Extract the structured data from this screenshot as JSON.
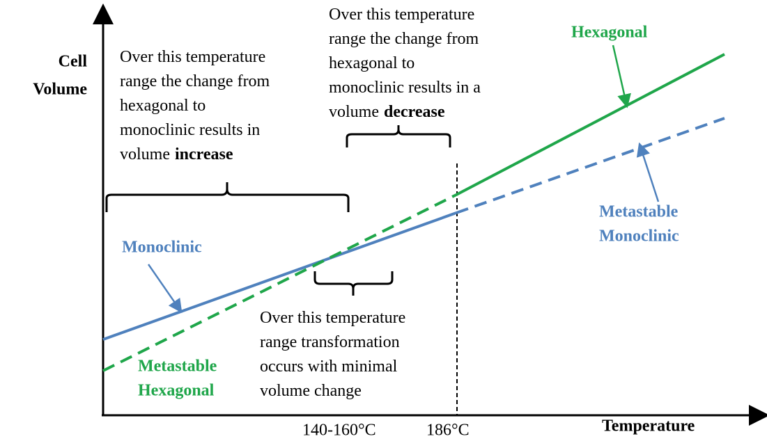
{
  "axes": {
    "y_label": [
      "Cell",
      "Volume"
    ],
    "x_label": "Temperature",
    "ticks": [
      "140-160°C",
      "186°C"
    ]
  },
  "annotations": [
    {
      "lines": [
        "Over this temperature",
        "range the change from",
        "hexagonal to",
        "monoclinic results in",
        "volume"
      ],
      "emphasis": "increase"
    },
    {
      "lines": [
        "Over this temperature",
        "range the change from",
        "hexagonal to",
        "monoclinic results in a",
        "volume"
      ],
      "emphasis": "decrease"
    },
    {
      "lines": [
        "Over this temperature",
        "range transformation",
        "occurs with minimal",
        "volume change"
      ]
    }
  ],
  "labels": {
    "hexagonal": "Hexagonal",
    "metastable_monoclinic": [
      "Metastable",
      "Monoclinic"
    ],
    "monoclinic": "Monoclinic",
    "metastable_hexagonal": [
      "Metastable",
      "Hexagonal"
    ]
  }
}
